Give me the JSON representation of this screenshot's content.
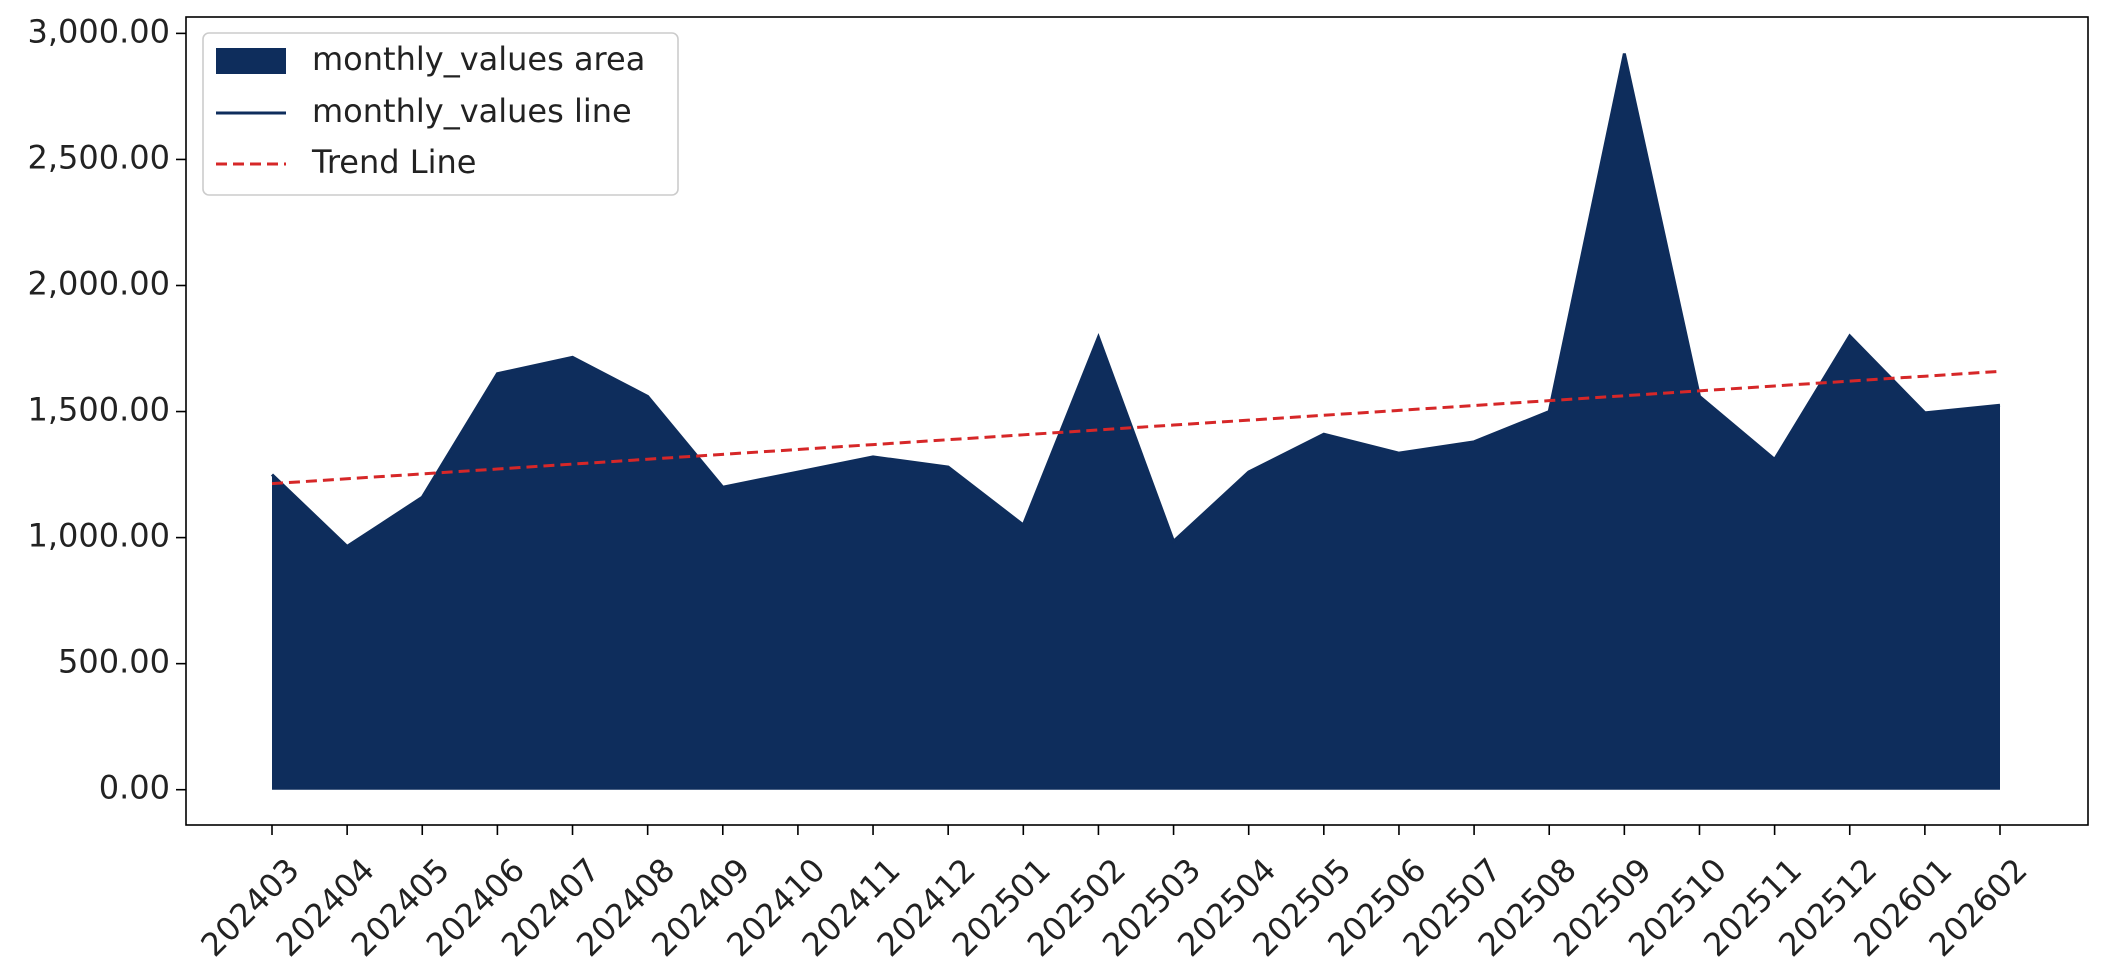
{
  "chart_data": {
    "type": "area",
    "title": "",
    "xlabel": "",
    "ylabel": "",
    "categories": [
      "202403",
      "202404",
      "202405",
      "202406",
      "202407",
      "202408",
      "202409",
      "202410",
      "202411",
      "202412",
      "202501",
      "202502",
      "202503",
      "202504",
      "202505",
      "202506",
      "202507",
      "202508",
      "202509",
      "202510",
      "202511",
      "202512",
      "202601",
      "202602"
    ],
    "series": [
      {
        "name": "monthly_values area",
        "kind": "area",
        "color": "#0e2d5c",
        "values": [
          1250,
          965,
          1160,
          1650,
          1715,
          1560,
          1200,
          1260,
          1320,
          1280,
          1050,
          1795,
          985,
          1260,
          1410,
          1335,
          1380,
          1500,
          2920,
          1560,
          1310,
          1800,
          1495,
          1525
        ]
      },
      {
        "name": "monthly_values line",
        "kind": "line",
        "color": "#0e2d5c",
        "values": [
          1250,
          965,
          1160,
          1650,
          1715,
          1560,
          1200,
          1260,
          1320,
          1280,
          1050,
          1795,
          985,
          1260,
          1410,
          1335,
          1380,
          1500,
          2920,
          1560,
          1310,
          1800,
          1495,
          1525
        ]
      },
      {
        "name": "Trend Line",
        "kind": "dashed-line",
        "color": "#d62728",
        "values": [
          1214,
          1233.4,
          1252.7,
          1272.1,
          1291.5,
          1310.9,
          1330.2,
          1349.6,
          1369.0,
          1388.3,
          1407.7,
          1427.1,
          1446.5,
          1465.8,
          1485.2,
          1504.6,
          1523.9,
          1543.3,
          1562.7,
          1582.1,
          1601.4,
          1620.8,
          1640.2,
          1659.5
        ]
      }
    ],
    "ylim": [
      -140,
      3065
    ],
    "yticks": [
      0,
      500,
      1000,
      1500,
      2000,
      2500,
      3000
    ],
    "ytick_labels": [
      "0.00",
      "500.00",
      "1,000.00",
      "1,500.00",
      "2,000.00",
      "2,500.00",
      "3,000.00"
    ],
    "grid": false,
    "legend_position": "top-left"
  }
}
